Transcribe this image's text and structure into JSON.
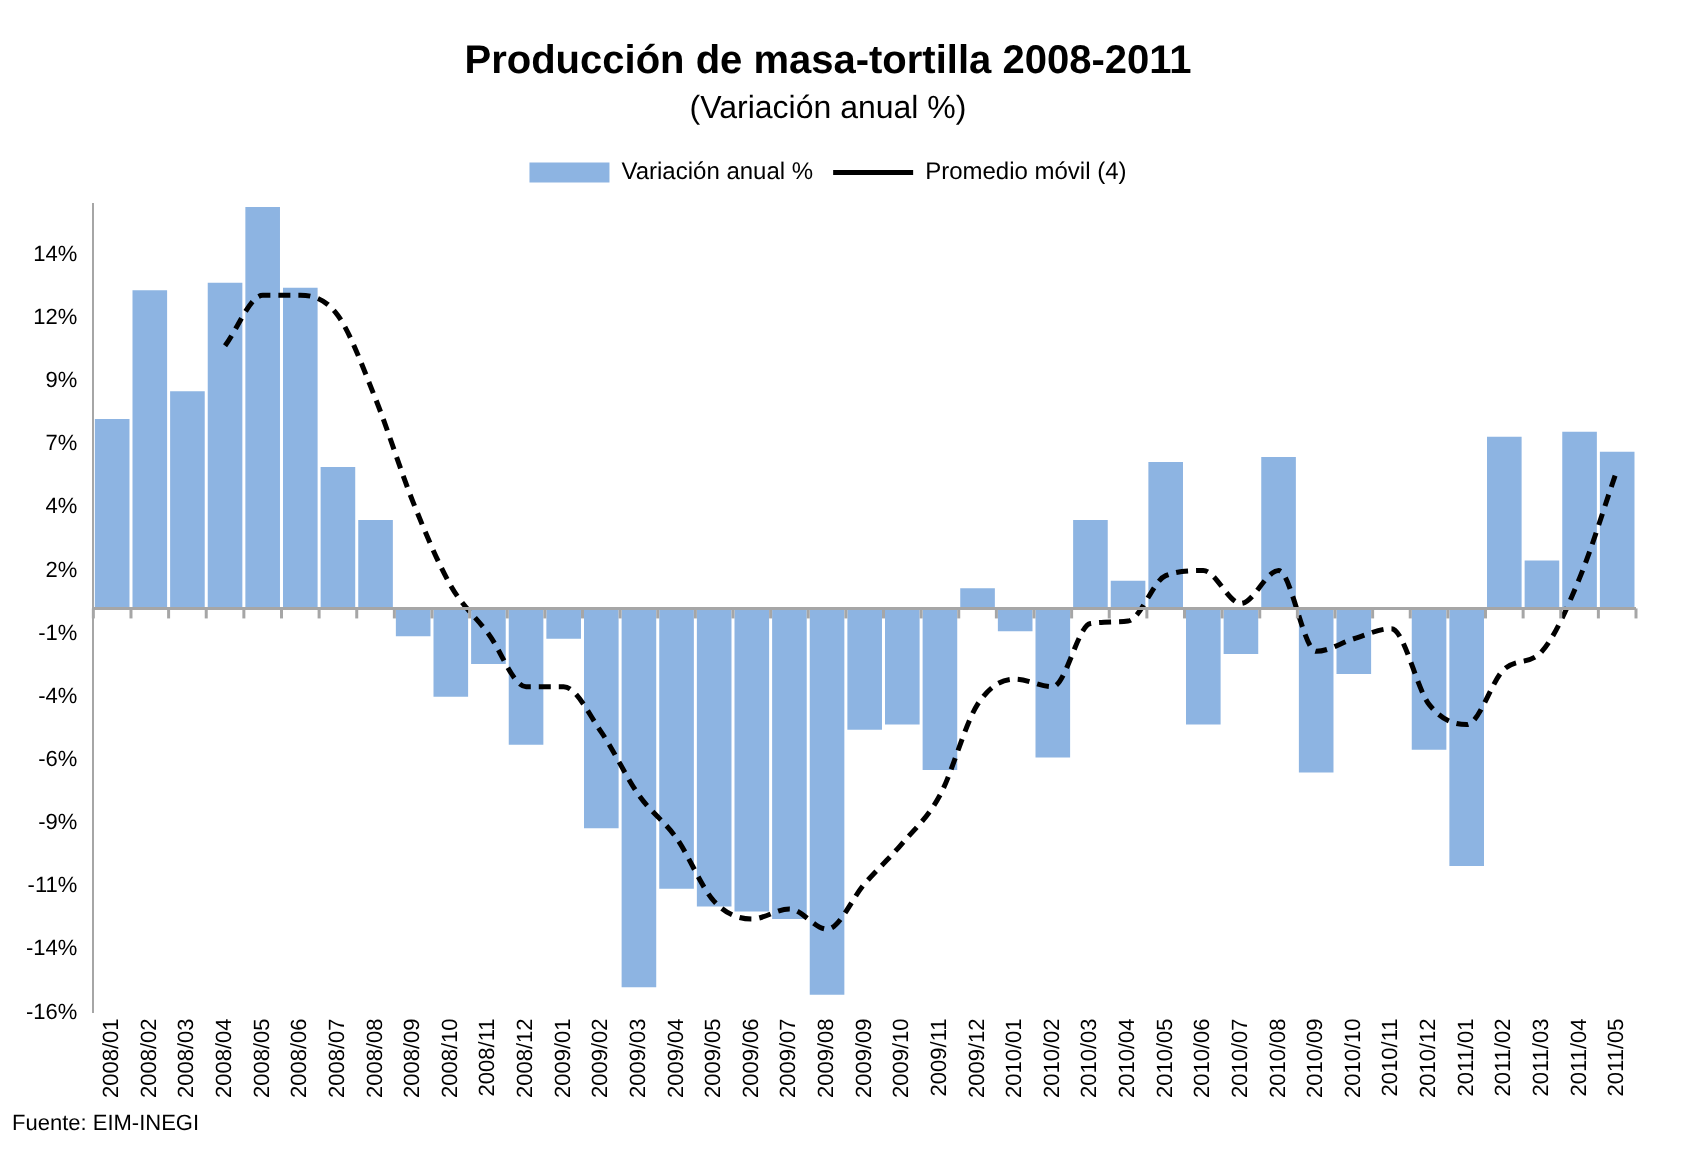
{
  "chart_data": {
    "type": "bar",
    "title": "Producción de masa-tortilla 2008-2011",
    "subtitle": "(Variación anual %)",
    "categories": [
      "2008/01",
      "2008/02",
      "2008/03",
      "2008/04",
      "2008/05",
      "2008/06",
      "2008/07",
      "2008/08",
      "2008/09",
      "2008/10",
      "2008/11",
      "2008/12",
      "2009/01",
      "2009/02",
      "2009/03",
      "2009/04",
      "2009/05",
      "2009/06",
      "2009/07",
      "2009/08",
      "2009/09",
      "2009/10",
      "2009/11",
      "2009/12",
      "2010/01",
      "2010/02",
      "2010/03",
      "2010/04",
      "2010/05",
      "2010/06",
      "2010/07",
      "2010/08",
      "2010/09",
      "2010/10",
      "2010/11",
      "2010/12",
      "2011/01",
      "2011/02",
      "2011/03",
      "2011/04",
      "2011/05"
    ],
    "series": [
      {
        "name": "Variación anual %",
        "color": "#8db4e2",
        "values": [
          7.5,
          12.6,
          8.6,
          12.9,
          15.9,
          12.7,
          5.6,
          3.5,
          -1.1,
          -3.5,
          -2.2,
          -5.4,
          -1.2,
          -8.7,
          -15.0,
          -11.1,
          -11.8,
          -12.0,
          -12.3,
          -15.3,
          -4.8,
          -4.6,
          -6.4,
          0.8,
          -0.9,
          -5.9,
          3.5,
          1.1,
          5.8,
          -4.6,
          -1.8,
          6.0,
          -6.5,
          -2.6,
          0,
          -5.6,
          -10.2,
          6.8,
          1.9,
          7.0,
          6.2
        ]
      },
      {
        "name": "Promedio móvil (4)",
        "type": "line",
        "color": "#000000",
        "line_style": "dashed",
        "marker": "none",
        "values": [
          null,
          null,
          null,
          10.4,
          12.4,
          12.4,
          11.6,
          8.3,
          4.2,
          0.9,
          -1.0,
          -3.1,
          -3.1,
          -4.9,
          -7.4,
          -9.1,
          -11.6,
          -12.3,
          -11.9,
          -12.7,
          -10.9,
          -9.3,
          -7.4,
          -3.8,
          -2.8,
          -3.1,
          -0.6,
          -0.5,
          1.3,
          1.5,
          0.2,
          1.5,
          -1.7,
          -1.2,
          -0.8,
          -3.8,
          -4.6,
          -2.4,
          -1.7,
          1.2,
          5.5
        ]
      }
    ],
    "ylim": [
      -16,
      16
    ],
    "yticks": [
      {
        "value": 14,
        "label": "14%"
      },
      {
        "value": 11.5,
        "label": "12%"
      },
      {
        "value": 9,
        "label": "9%"
      },
      {
        "value": 6.5,
        "label": "7%"
      },
      {
        "value": 4,
        "label": "4%"
      },
      {
        "value": 1.5,
        "label": "2%"
      },
      {
        "value": -1,
        "label": "-1%"
      },
      {
        "value": -3.5,
        "label": "-4%"
      },
      {
        "value": -6,
        "label": "-6%"
      },
      {
        "value": -8.5,
        "label": "-9%"
      },
      {
        "value": -11,
        "label": "-11%"
      },
      {
        "value": -13.5,
        "label": "-14%"
      },
      {
        "value": -16,
        "label": "-16%"
      }
    ],
    "grid": false,
    "legend": "top",
    "annotations": [
      "Fuente: EIM-INEGI"
    ]
  }
}
